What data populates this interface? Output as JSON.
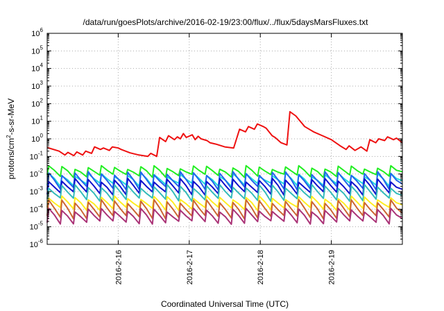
{
  "chart_data": {
    "type": "line",
    "title": "/data/run/goesPlots/archive/2016-02-19/23:00/flux/../flux/5daysMarsFluxes.txt",
    "xlabel": "Coordinated Universal Time (UTC)",
    "ylabel": "protons/cm²-s-sr-MeV",
    "ylabel_parts": {
      "prefix": "protons/cm",
      "sup": "2",
      "suffix": "-s-sr-MeV"
    },
    "x_scale": "time",
    "x_range": [
      "2016-02-15T00:00",
      "2016-02-20T00:00"
    ],
    "x_ticks": [
      "2016-2-16",
      "2016-2-17",
      "2016-2-18",
      "2016-2-19"
    ],
    "y_scale": "log",
    "ylim": [
      1e-06,
      1000000.0
    ],
    "y_ticks": [
      {
        "base": "10",
        "exp": "-6"
      },
      {
        "base": "10",
        "exp": "-5"
      },
      {
        "base": "10",
        "exp": "-4"
      },
      {
        "base": "10",
        "exp": "-3"
      },
      {
        "base": "10",
        "exp": "-2"
      },
      {
        "base": "10",
        "exp": "-1"
      },
      {
        "base": "10",
        "exp": "0"
      },
      {
        "base": "10",
        "exp": "1"
      },
      {
        "base": "10",
        "exp": "2"
      },
      {
        "base": "10",
        "exp": "3"
      },
      {
        "base": "10",
        "exp": "4"
      },
      {
        "base": "10",
        "exp": "5"
      },
      {
        "base": "10",
        "exp": "6"
      }
    ],
    "grid": true,
    "legend": "none",
    "series": [
      {
        "color": "#ee1111",
        "x": [
          "2016-02-15T00:00",
          "2016-02-15T04:00",
          "2016-02-15T06:00",
          "2016-02-15T07:00",
          "2016-02-15T09:00",
          "2016-02-15T10:00",
          "2016-02-15T12:00",
          "2016-02-15T13:00",
          "2016-02-15T15:00",
          "2016-02-15T16:00",
          "2016-02-15T18:00",
          "2016-02-15T19:00",
          "2016-02-15T21:00",
          "2016-02-15T22:00",
          "2016-02-16T00:00",
          "2016-02-16T01:00",
          "2016-02-16T04:00",
          "2016-02-16T07:00",
          "2016-02-16T10:00",
          "2016-02-16T11:00",
          "2016-02-16T13:00",
          "2016-02-16T14:00",
          "2016-02-16T16:00",
          "2016-02-16T17:00",
          "2016-02-16T19:00",
          "2016-02-16T20:00",
          "2016-02-16T21:00",
          "2016-02-16T22:00",
          "2016-02-16T23:00",
          "2016-02-17T01:00",
          "2016-02-17T02:00",
          "2016-02-17T03:00",
          "2016-02-17T04:00",
          "2016-02-17T06:00",
          "2016-02-17T07:00",
          "2016-02-17T09:00",
          "2016-02-17T12:00",
          "2016-02-17T15:00",
          "2016-02-17T17:00",
          "2016-02-17T19:00",
          "2016-02-17T20:00",
          "2016-02-17T22:00",
          "2016-02-17T23:00",
          "2016-02-18T01:00",
          "2016-02-18T02:00",
          "2016-02-18T04:00",
          "2016-02-18T05:00",
          "2016-02-18T07:00",
          "2016-02-18T09:00",
          "2016-02-18T10:00",
          "2016-02-18T12:00",
          "2016-02-18T15:00",
          "2016-02-18T18:00",
          "2016-02-18T21:00",
          "2016-02-19T00:00",
          "2016-02-19T03:00",
          "2016-02-19T05:00",
          "2016-02-19T06:00",
          "2016-02-19T08:00",
          "2016-02-19T10:00",
          "2016-02-19T12:00",
          "2016-02-19T13:00",
          "2016-02-19T15:00",
          "2016-02-19T16:00",
          "2016-02-19T18:00",
          "2016-02-19T19:00",
          "2016-02-19T21:00",
          "2016-02-19T22:00",
          "2016-02-20T00:00"
        ],
        "values": [
          0.32,
          0.2,
          0.12,
          0.17,
          0.11,
          0.18,
          0.12,
          0.2,
          0.15,
          0.35,
          0.25,
          0.3,
          0.22,
          0.35,
          0.3,
          0.25,
          0.16,
          0.12,
          0.1,
          0.15,
          0.1,
          1.2,
          0.7,
          1.5,
          0.9,
          1.3,
          1.0,
          2.0,
          1.2,
          1.7,
          0.9,
          1.4,
          1.0,
          0.8,
          0.6,
          0.5,
          0.35,
          0.3,
          3.5,
          2.5,
          5.0,
          3.5,
          7.0,
          5.0,
          4.0,
          1.5,
          1.2,
          0.6,
          0.45,
          35.0,
          20.0,
          5.0,
          2.5,
          1.5,
          0.9,
          0.4,
          0.25,
          0.4,
          0.22,
          0.35,
          0.2,
          0.9,
          0.6,
          1.0,
          0.8,
          1.3,
          0.9,
          1.1,
          0.6
        ]
      },
      {
        "color": "#22ee22",
        "base": 0.024,
        "min": 0.009,
        "pulses": 27,
        "x_range": [
          "2016-02-15T00:00",
          "2016-02-20T00:00"
        ]
      },
      {
        "color": "#22dddd",
        "base": 0.009,
        "min": 0.0028,
        "pulses": 27,
        "x_range": [
          "2016-02-15T00:00",
          "2016-02-20T00:00"
        ]
      },
      {
        "color": "#2266ee",
        "base": 0.011,
        "min": 0.0018,
        "pulses": 27,
        "x_range": [
          "2016-02-15T00:00",
          "2016-02-20T00:00"
        ]
      },
      {
        "color": "#1111cc",
        "base": 0.0045,
        "min": 0.0009,
        "pulses": 27,
        "x_range": [
          "2016-02-15T00:00",
          "2016-02-20T00:00"
        ]
      },
      {
        "color": "#33bbbb",
        "base": 0.002,
        "min": 0.0004,
        "pulses": 27,
        "x_range": [
          "2016-02-15T00:00",
          "2016-02-20T00:00"
        ]
      },
      {
        "color": "#ffee22",
        "base": 0.00045,
        "min": 0.00012,
        "pulses": 27,
        "x_range": [
          "2016-02-15T00:00",
          "2016-02-20T00:00"
        ]
      },
      {
        "color": "#cc6633",
        "base": 0.00028,
        "min": 4e-05,
        "pulses": 27,
        "x_range": [
          "2016-02-15T00:00",
          "2016-02-20T00:00"
        ]
      },
      {
        "color": "#aa3377",
        "base": 9e-05,
        "min": 2e-05,
        "pulses": 27,
        "x_range": [
          "2016-02-15T00:00",
          "2016-02-20T00:00"
        ]
      }
    ]
  }
}
